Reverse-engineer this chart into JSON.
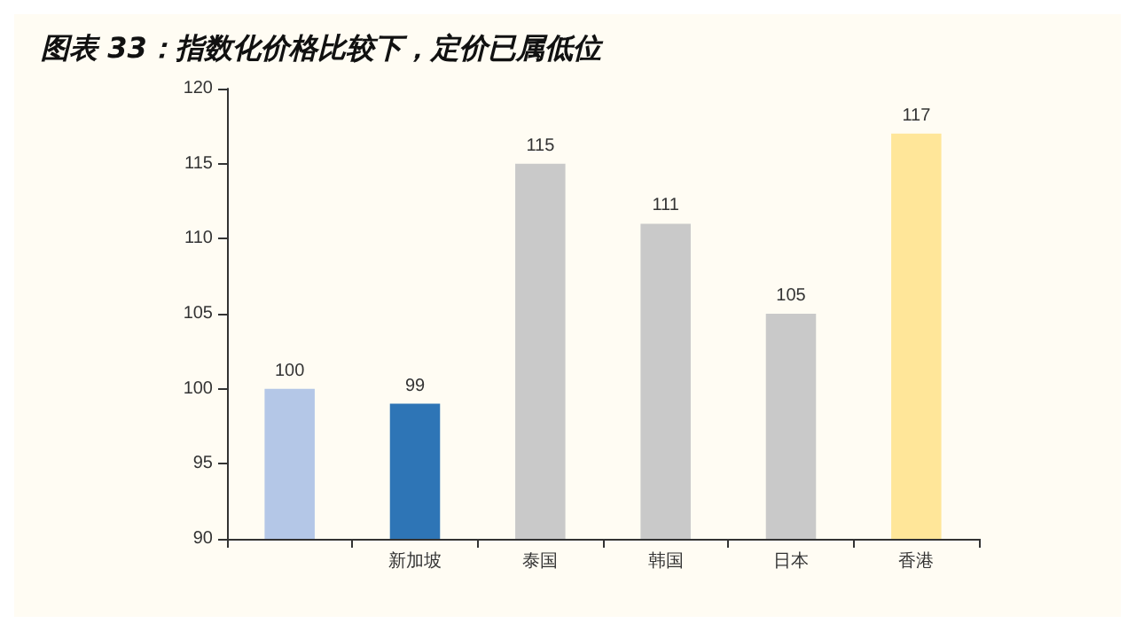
{
  "chart_data": {
    "type": "bar",
    "title": "图表 33：指数化价格比较下，定价已属低位",
    "categories": [
      null,
      "新加坡",
      "泰国",
      "韩国",
      "日本",
      "香港"
    ],
    "values": [
      100,
      99,
      115,
      111,
      105,
      117
    ],
    "colors": [
      "#b4c7e7",
      "#2e75b6",
      "#c9c9c9",
      "#c9c9c9",
      "#c9c9c9",
      "#ffe699"
    ],
    "ylim": [
      90,
      120
    ],
    "yticks": [
      90,
      95,
      100,
      105,
      110,
      115,
      120
    ],
    "data_labels": true
  }
}
